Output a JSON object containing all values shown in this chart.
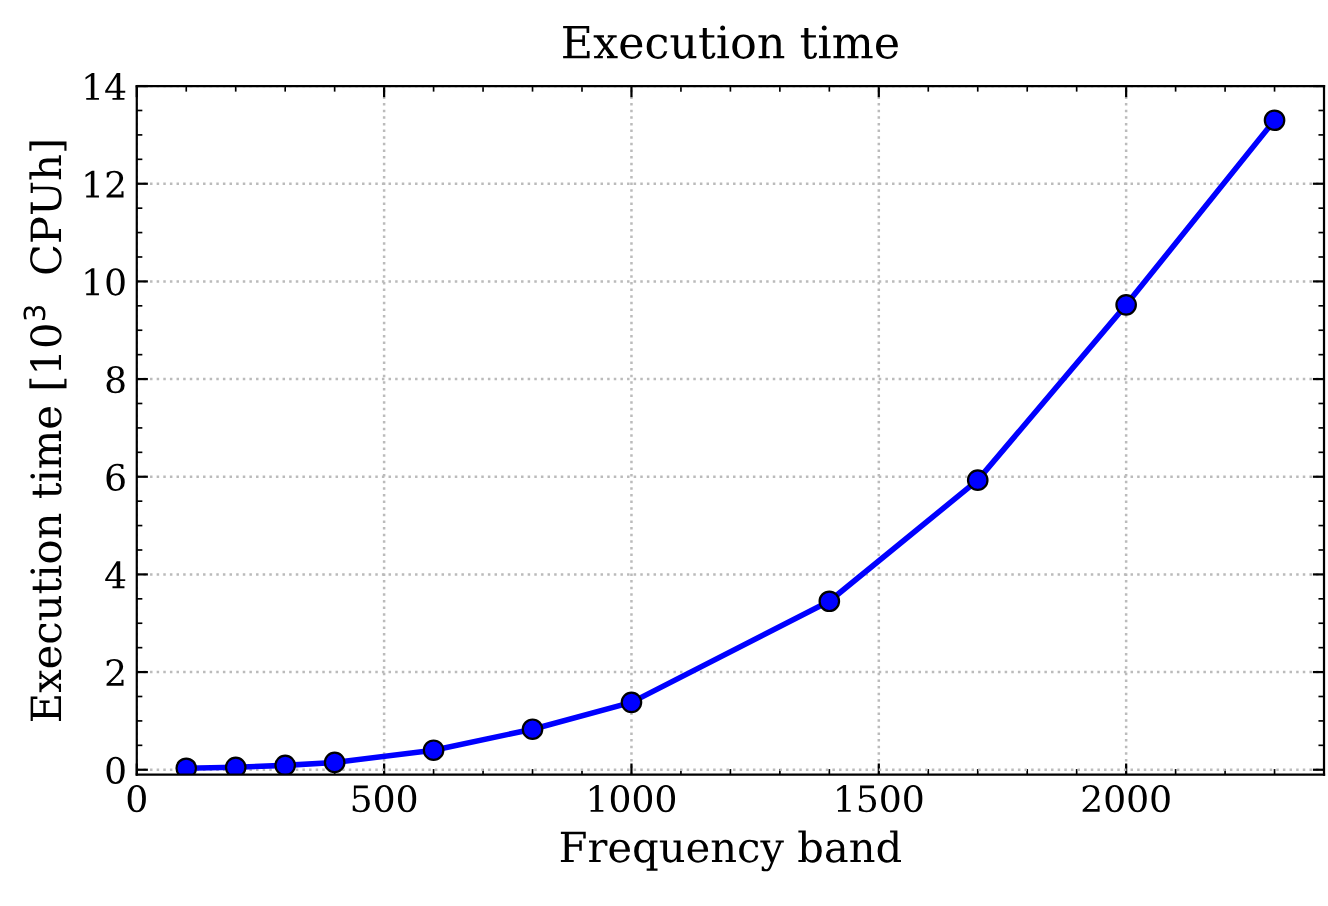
{
  "chart_data": {
    "type": "line",
    "title": "Execution time",
    "xlabel": "Frequency band",
    "ylabel": "Execution time [10$^{3}$  CPUh]",
    "x": [
      100,
      200,
      300,
      400,
      600,
      800,
      1000,
      1400,
      1700,
      2000,
      2300
    ],
    "series": [
      {
        "color": "#0000ff",
        "values": [
          0.03,
          0.05,
          0.09,
          0.15,
          0.4,
          0.83,
          1.38,
          3.45,
          5.93,
          9.52,
          13.3
        ]
      }
    ],
    "xlim": [
      0,
      2400
    ],
    "ylim": [
      -0.1,
      14
    ],
    "xticks": [
      0,
      500,
      1000,
      1500,
      2000
    ],
    "yticks": [
      0,
      2,
      4,
      6,
      8,
      10,
      12,
      14
    ],
    "grid": true,
    "marker": "circle",
    "line_style": "solid"
  }
}
